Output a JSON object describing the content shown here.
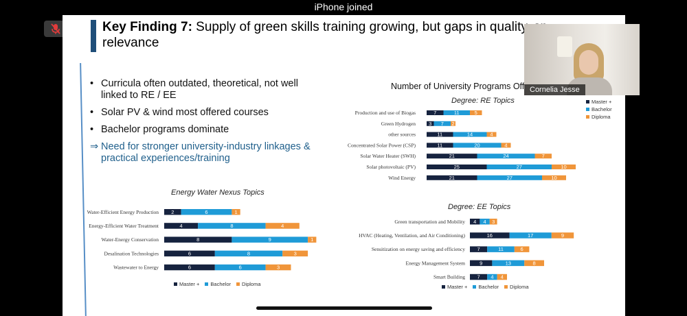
{
  "status_bar": {
    "title": "iPhone joined"
  },
  "call": {
    "mic_icon": "mic-muted-icon",
    "participant_name": "Cornelia Jesse"
  },
  "slide": {
    "title_bold": "Key Finding 7:",
    "title_rest": " Supply of green skills training growing, but gaps in quality, sp",
    "title_line2": "relevance",
    "bullets": [
      "Curricula often outdated, theoretical, not well linked to RE / EE",
      "Solar PV  & wind most offered courses",
      "Bachelor programs dominate"
    ],
    "arrow_symbol": "⇒",
    "highlight": "Need for stronger university-industry linkages & practical experiences/training",
    "main_chart_title": "Number of University Programs Off",
    "legend": {
      "master": "Master +",
      "bachelor": "Bachelor",
      "diploma": "Diploma"
    },
    "colors": {
      "master": "#16233f",
      "bachelor": "#1f9bd7",
      "diploma": "#f0953a"
    }
  },
  "chart_data": [
    {
      "type": "bar",
      "orientation": "horizontal",
      "stacked": true,
      "title": "Degree: RE Topics",
      "categories": [
        "Production and use of Biogas",
        "Green Hydrogen",
        "other sources",
        "Concentrated Solar Power (CSP)",
        "Solar Water Heater (SWH)",
        "Solar photovoltaic  (PV)",
        "Wind Energy"
      ],
      "series": [
        {
          "name": "Master +",
          "values": [
            7,
            3,
            11,
            11,
            21,
            25,
            21
          ]
        },
        {
          "name": "Bachelor",
          "values": [
            11,
            7,
            14,
            20,
            24,
            27,
            27
          ]
        },
        {
          "name": "Diploma",
          "values": [
            5,
            2,
            4,
            4,
            7,
            10,
            10
          ]
        }
      ],
      "legend_position": "right"
    },
    {
      "type": "bar",
      "orientation": "horizontal",
      "stacked": true,
      "title": "Degree: EE Topics",
      "categories": [
        "Green transportation and Mobility",
        "HVAC (Heating, Ventilation, and Air Conditioning)",
        "Sensitization on energy saving and efficiency",
        "Energy Management System",
        "Smart Building"
      ],
      "series": [
        {
          "name": "Master +",
          "values": [
            4,
            16,
            7,
            9,
            7
          ]
        },
        {
          "name": "Bachelor",
          "values": [
            4,
            17,
            11,
            13,
            4
          ]
        },
        {
          "name": "Diploma",
          "values": [
            3,
            9,
            6,
            8,
            4
          ]
        }
      ],
      "legend_position": "bottom"
    },
    {
      "type": "bar",
      "orientation": "horizontal",
      "stacked": true,
      "title": "Energy Water Nexus Topics",
      "categories": [
        "Water-Efficient Energy Production",
        "Energy-Efficient Water Treatment",
        "Water-Energy Conservation",
        "Desalination Technologies",
        "Wastewater to Energy"
      ],
      "series": [
        {
          "name": "Master +",
          "values": [
            2,
            4,
            8,
            6,
            6
          ]
        },
        {
          "name": "Bachelor",
          "values": [
            6,
            8,
            9,
            8,
            6
          ]
        },
        {
          "name": "Diploma",
          "values": [
            1,
            4,
            1,
            3,
            3
          ]
        }
      ],
      "legend_position": "bottom"
    }
  ]
}
